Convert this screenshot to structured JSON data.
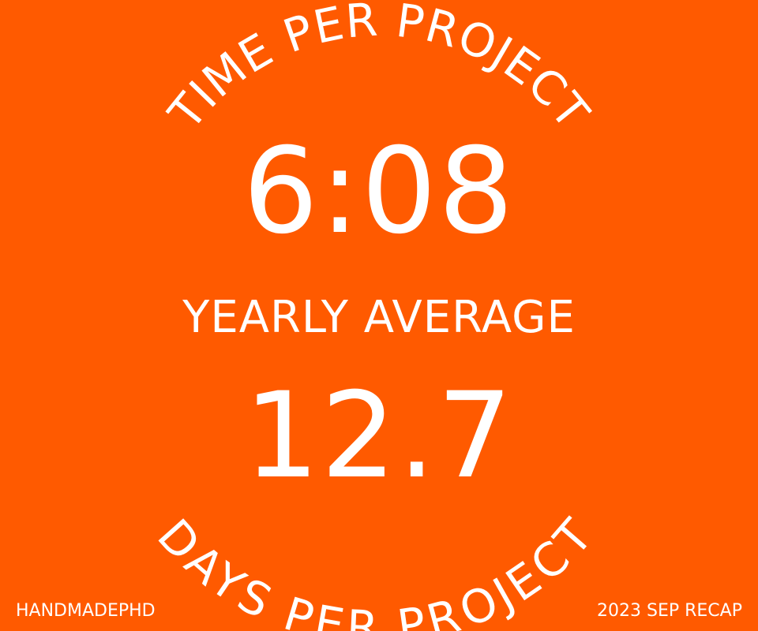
{
  "background_color": "#FF5A00",
  "text_color": "#FFFFFF",
  "top_arc_label": "TIME PER PROJECT",
  "top_value": "6:08",
  "middle_label": "YEARLY AVERAGE",
  "bottom_value": "12.7",
  "bottom_arc_label": "DAYS PER PROJECT",
  "footer": {
    "brand": "HANDMADEPHD",
    "period": "2023 SEP RECAP"
  }
}
